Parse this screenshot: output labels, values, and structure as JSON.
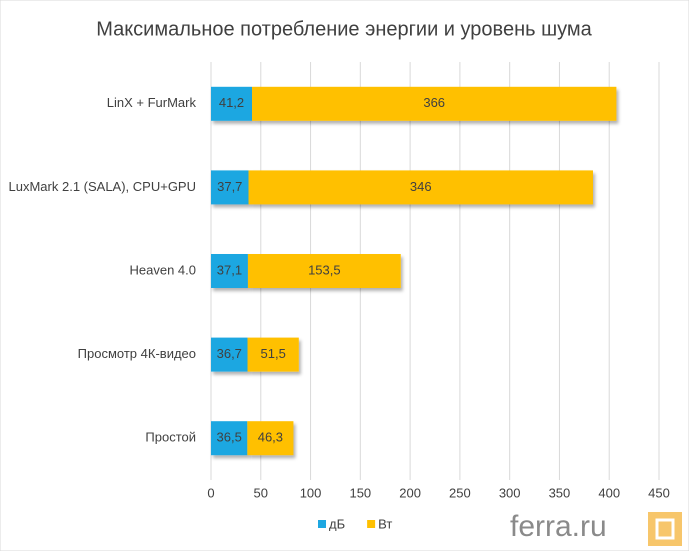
{
  "chart_data": {
    "type": "bar",
    "orientation": "horizontal",
    "stacked": true,
    "title": "Максимальное потребление энергии и уровень шума",
    "categories": [
      "LinX + FurMark",
      "LuxMark 2.1 (SALA), CPU+GPU",
      "Heaven 4.0",
      "Просмотр 4К-видео",
      "Простой"
    ],
    "series": [
      {
        "name": "дБ",
        "color": "#1ea7e1",
        "values": [
          41.2,
          37.7,
          37.1,
          36.7,
          36.5
        ],
        "value_labels": [
          "41,2",
          "37,7",
          "37,1",
          "36,7",
          "36,5"
        ]
      },
      {
        "name": "Вт",
        "color": "#ffc000",
        "values": [
          366,
          346,
          153.5,
          51.5,
          46.3
        ],
        "value_labels": [
          "366",
          "346",
          "153,5",
          "51,5",
          "46,3"
        ]
      }
    ],
    "xlim": [
      0,
      450
    ],
    "xticks": [
      0,
      50,
      100,
      150,
      200,
      250,
      300,
      350,
      400,
      450
    ],
    "grid": true,
    "legend": "bottom"
  },
  "watermark": "ferra.ru"
}
